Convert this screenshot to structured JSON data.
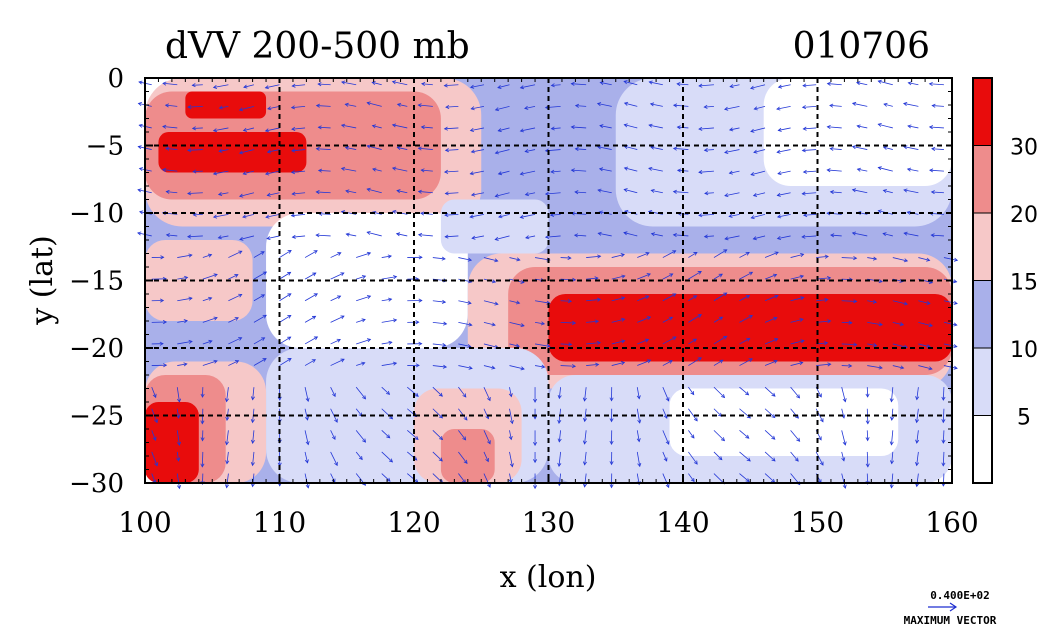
{
  "chart_data": {
    "type": "heatmap",
    "title": "dVV 200-500 mb",
    "date_label": "010706",
    "xlabel": "x (lon)",
    "ylabel": "y (lat)",
    "xlim": [
      100,
      160
    ],
    "ylim": [
      -30,
      0
    ],
    "x_ticks": [
      "100",
      "110",
      "120",
      "130",
      "140",
      "150",
      "160"
    ],
    "y_ticks": [
      "0",
      "−5",
      "−10",
      "−15",
      "−20",
      "−25",
      "−30"
    ],
    "x_tick_values": [
      100,
      110,
      120,
      130,
      140,
      150,
      160
    ],
    "y_tick_values": [
      0,
      -5,
      -10,
      -15,
      -20,
      -25,
      -30
    ],
    "grid": true,
    "colorbar": {
      "levels": [
        0,
        5,
        10,
        15,
        20,
        30,
        35
      ],
      "labels": [
        "5",
        "10",
        "15",
        "20",
        "30"
      ],
      "colors": [
        "#ffffff",
        "#d8dcf8",
        "#a9b0ea",
        "#f6c8c8",
        "#ee8c8c",
        "#e80c0c"
      ]
    },
    "vector_legend": {
      "value": "0.400E+02",
      "label": "MAXIMUM VECTOR",
      "color": "#1f2fd0"
    },
    "field_regions": [
      {
        "lon": [
          100,
          160
        ],
        "lat": [
          -30,
          0
        ],
        "level": 2
      },
      {
        "lon": [
          100,
          125
        ],
        "lat": [
          -11,
          0
        ],
        "level": 3
      },
      {
        "lon": [
          100,
          122
        ],
        "lat": [
          -9,
          -1
        ],
        "level": 4
      },
      {
        "lon": [
          101,
          112
        ],
        "lat": [
          -7,
          -4
        ],
        "level": 5
      },
      {
        "lon": [
          103,
          109
        ],
        "lat": [
          -3,
          -1
        ],
        "level": 5
      },
      {
        "lon": [
          100,
          108
        ],
        "lat": [
          -18,
          -12
        ],
        "level": 3
      },
      {
        "lon": [
          109,
          124
        ],
        "lat": [
          -20,
          -10
        ],
        "level": 0
      },
      {
        "lon": [
          122,
          130
        ],
        "lat": [
          -13,
          -9
        ],
        "level": 1
      },
      {
        "lon": [
          135,
          160
        ],
        "lat": [
          -11,
          0
        ],
        "level": 1
      },
      {
        "lon": [
          146,
          160
        ],
        "lat": [
          -8,
          0
        ],
        "level": 0
      },
      {
        "lon": [
          124,
          160
        ],
        "lat": [
          -23,
          -13
        ],
        "level": 3
      },
      {
        "lon": [
          127,
          160
        ],
        "lat": [
          -22,
          -14
        ],
        "level": 4
      },
      {
        "lon": [
          130,
          160
        ],
        "lat": [
          -21,
          -16
        ],
        "level": 5
      },
      {
        "lon": [
          109,
          130
        ],
        "lat": [
          -30,
          -20
        ],
        "level": 1
      },
      {
        "lon": [
          120,
          128
        ],
        "lat": [
          -30,
          -23
        ],
        "level": 3
      },
      {
        "lon": [
          122,
          126
        ],
        "lat": [
          -30,
          -26
        ],
        "level": 4
      },
      {
        "lon": [
          130,
          160
        ],
        "lat": [
          -30,
          -22
        ],
        "level": 1
      },
      {
        "lon": [
          139,
          156
        ],
        "lat": [
          -28,
          -23
        ],
        "level": 0
      },
      {
        "lon": [
          100,
          109
        ],
        "lat": [
          -30,
          -21
        ],
        "level": 3
      },
      {
        "lon": [
          100,
          106
        ],
        "lat": [
          -30,
          -22
        ],
        "level": 4
      },
      {
        "lon": [
          100,
          104
        ],
        "lat": [
          -30,
          -24
        ],
        "level": 5
      }
    ]
  }
}
